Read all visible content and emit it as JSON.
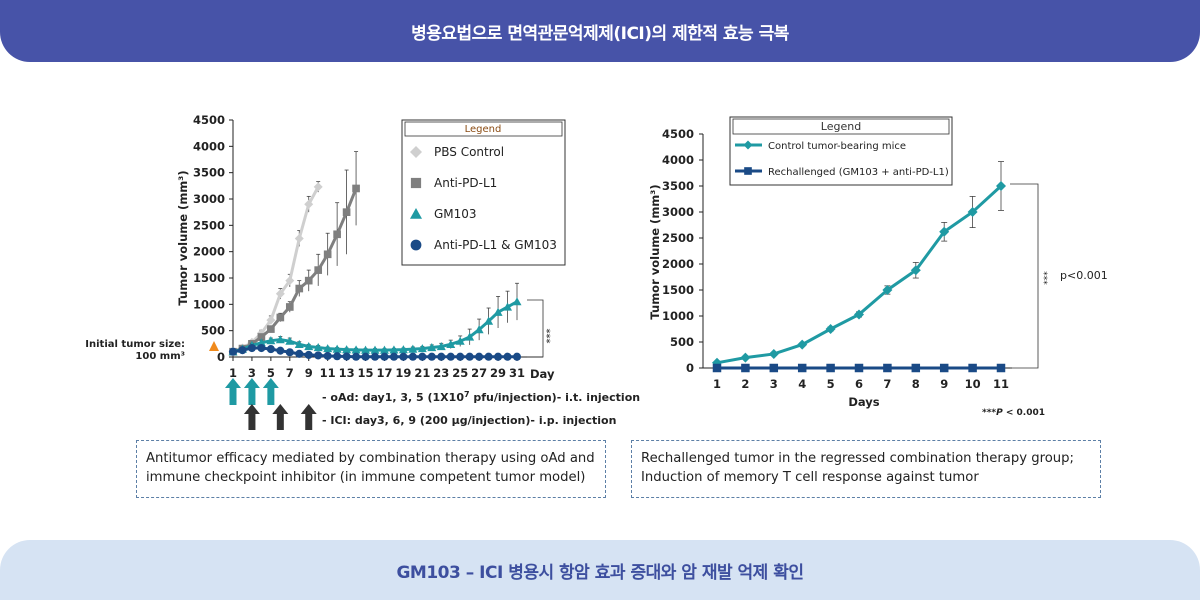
{
  "header": {
    "title": "병용요법으로 면역관문억제제(ICI)의 제한적 효능 극복"
  },
  "footer": {
    "title": "GM103 – ICI 병용시 항암 효과 증대와 암 재발 억제 확인"
  },
  "captions": {
    "left": "Antitumor efficacy mediated by combination therapy using oAd and immune checkpoint inhibitor (in immune competent tumor model)",
    "right": "Rechallenged tumor in the regressed combination therapy group; Induction of memory T cell response against tumor"
  },
  "left_annotations": {
    "initial_size_line1": "Initial tumor size:",
    "initial_size_line2": "100 mm³",
    "oad_schedule_a": "- oAd: day1, 3, 5 (1X10",
    "oad_schedule_sup": "7",
    "oad_schedule_b": " pfu/injection)- i.t. injection",
    "ici_schedule": "- ICI: day3, 6, 9 (200 μg/injection)- i.p. injection",
    "significance": "***",
    "arrow_colors": {
      "oad": "#1f9aa3",
      "ici": "#333333"
    },
    "initial_marker_color": "#f08a1c"
  },
  "right_annotations": {
    "significance_stars": "***",
    "pvalue": "p<0.001",
    "footnote_stars": "***",
    "footnote_p": "P",
    "footnote_rest": " < 0.001"
  },
  "chart_data": [
    {
      "type": "line",
      "xlabel": "Day",
      "ylabel": "Tumor volume (mm³)",
      "ylim": [
        0,
        4500
      ],
      "yticks": [
        0,
        500,
        1000,
        1500,
        2000,
        2500,
        3000,
        3500,
        4000,
        4500
      ],
      "xticks": [
        1,
        3,
        5,
        7,
        9,
        11,
        13,
        15,
        17,
        19,
        21,
        23,
        25,
        27,
        29,
        31
      ],
      "xlim": [
        0,
        32
      ],
      "legend_title": "Legend",
      "legend_position": "top-right",
      "series": [
        {
          "name": "PBS Control",
          "color": "#cfcfcf",
          "marker": "diamond",
          "x": [
            1,
            2,
            3,
            4,
            5,
            6,
            7,
            8,
            9,
            10
          ],
          "y": [
            100,
            170,
            280,
            450,
            700,
            1200,
            1450,
            2250,
            2900,
            3230
          ],
          "err": [
            20,
            30,
            40,
            60,
            80,
            100,
            120,
            150,
            150,
            100
          ]
        },
        {
          "name": "Anti-PD-L1",
          "color": "#7f7f7f",
          "marker": "square",
          "x": [
            1,
            2,
            3,
            4,
            5,
            6,
            7,
            8,
            9,
            10,
            11,
            12,
            13,
            14
          ],
          "y": [
            100,
            160,
            250,
            380,
            530,
            750,
            950,
            1300,
            1450,
            1650,
            1950,
            2330,
            2750,
            3200
          ],
          "err": [
            20,
            30,
            40,
            50,
            60,
            80,
            100,
            150,
            200,
            300,
            400,
            600,
            800,
            700
          ]
        },
        {
          "name": "GM103",
          "color": "#1f9aa3",
          "marker": "triangle",
          "x": [
            1,
            2,
            3,
            4,
            5,
            6,
            7,
            8,
            9,
            10,
            11,
            12,
            13,
            14,
            15,
            16,
            17,
            18,
            19,
            20,
            21,
            22,
            23,
            24,
            25,
            26,
            27,
            28,
            29,
            30,
            31
          ],
          "y": [
            100,
            150,
            220,
            270,
            310,
            330,
            300,
            240,
            200,
            180,
            160,
            150,
            140,
            135,
            130,
            130,
            130,
            135,
            140,
            150,
            160,
            180,
            200,
            240,
            300,
            380,
            520,
            680,
            850,
            950,
            1050
          ],
          "err": [
            20,
            30,
            40,
            50,
            50,
            60,
            60,
            50,
            40,
            40,
            30,
            30,
            30,
            30,
            30,
            30,
            30,
            30,
            30,
            40,
            40,
            50,
            60,
            80,
            100,
            150,
            200,
            250,
            300,
            300,
            350
          ]
        },
        {
          "name": "Anti-PD-L1 & GM103",
          "color": "#1a4a86",
          "marker": "circle",
          "x": [
            1,
            2,
            3,
            4,
            5,
            6,
            7,
            8,
            9,
            10,
            11,
            12,
            13,
            14,
            15,
            16,
            17,
            18,
            19,
            20,
            21,
            22,
            23,
            24,
            25,
            26,
            27,
            28,
            29,
            30,
            31
          ],
          "y": [
            100,
            130,
            170,
            170,
            150,
            120,
            90,
            60,
            40,
            30,
            20,
            15,
            10,
            5,
            5,
            5,
            5,
            5,
            5,
            5,
            5,
            5,
            5,
            5,
            5,
            5,
            5,
            5,
            5,
            5,
            5
          ],
          "err": [
            15,
            20,
            30,
            30,
            30,
            30,
            20,
            15,
            10,
            10,
            10,
            10,
            5,
            5,
            5,
            5,
            5,
            5,
            5,
            5,
            5,
            5,
            5,
            5,
            5,
            5,
            5,
            5,
            5,
            5,
            5
          ]
        }
      ]
    },
    {
      "type": "line",
      "xlabel": "Days",
      "ylabel": "Tumor volume (mm³)",
      "ylim": [
        0,
        4500
      ],
      "yticks": [
        0,
        500,
        1000,
        1500,
        2000,
        2500,
        3000,
        3500,
        4000,
        4500
      ],
      "categories": [
        1,
        2,
        3,
        4,
        5,
        6,
        7,
        8,
        9,
        10,
        11
      ],
      "legend_title": "Legend",
      "legend_position": "top-left",
      "series": [
        {
          "name": "Control tumor-bearing mice",
          "color": "#1f9aa3",
          "marker": "diamond",
          "y": [
            100,
            200,
            270,
            450,
            750,
            1030,
            1500,
            1880,
            2620,
            3000,
            3500
          ],
          "err": [
            0,
            20,
            30,
            30,
            40,
            50,
            80,
            150,
            180,
            300,
            470
          ]
        },
        {
          "name": "Rechallenged (GM103 + anti-PD-L1)",
          "color": "#1a4a86",
          "marker": "square",
          "y": [
            0,
            0,
            0,
            0,
            0,
            0,
            0,
            0,
            0,
            0,
            0
          ],
          "err": [
            0,
            0,
            0,
            0,
            0,
            0,
            0,
            0,
            0,
            0,
            0
          ]
        }
      ]
    }
  ]
}
